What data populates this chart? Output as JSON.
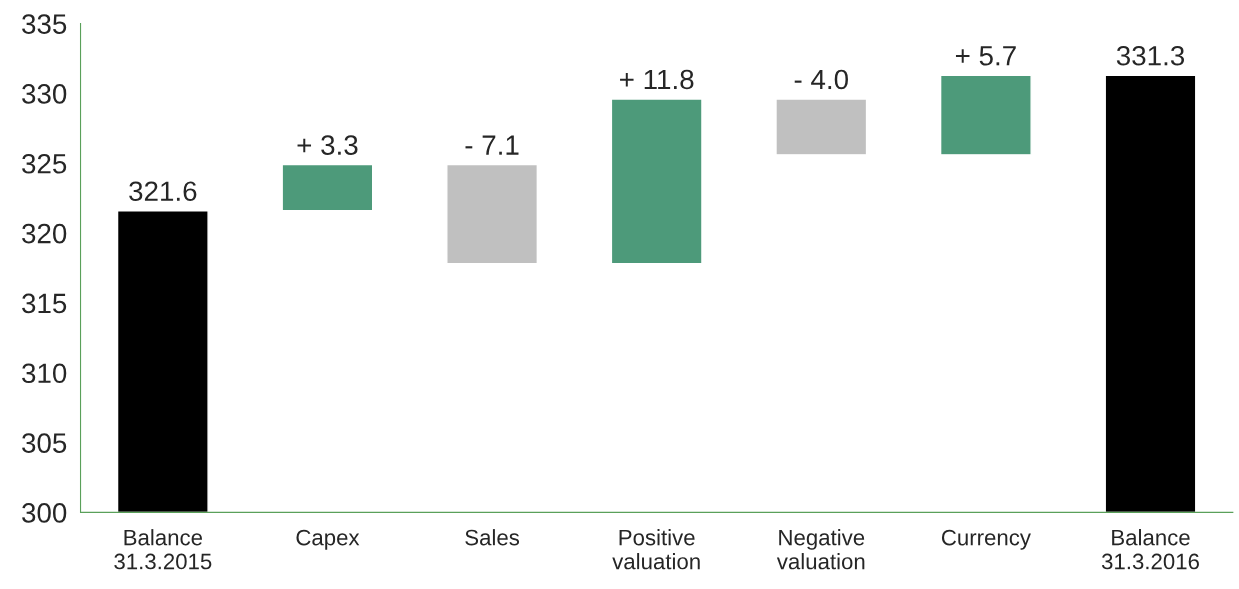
{
  "chart_data": {
    "type": "bar",
    "categories": [
      "Balance\n31.3.2015",
      "Capex",
      "Sales",
      "Positive\nvaluation",
      "Negative\nvaluation",
      "Currency",
      "Balance\n31.3.2016"
    ],
    "values": [
      21.6,
      3.3,
      -7.1,
      11.8,
      -4.0,
      5.7,
      31.3
    ],
    "base": [
      300,
      321.6,
      324.9,
      317.8,
      329.6,
      325.6,
      300
    ],
    "colors": [
      "#000000",
      "#4d9a7a",
      "#c0c0c0",
      "#4d9a7a",
      "#c0c0c0",
      "#4d9a7a",
      "#000000"
    ],
    "value_labels": [
      "321.6",
      "+ 3.3",
      "- 7.1",
      "+ 11.8",
      "- 4.0",
      "+ 5.7",
      "331.3"
    ],
    "ylim": [
      300,
      335
    ],
    "yticks": [
      300,
      305,
      310,
      315,
      320,
      325,
      330,
      335
    ],
    "grid": false
  }
}
